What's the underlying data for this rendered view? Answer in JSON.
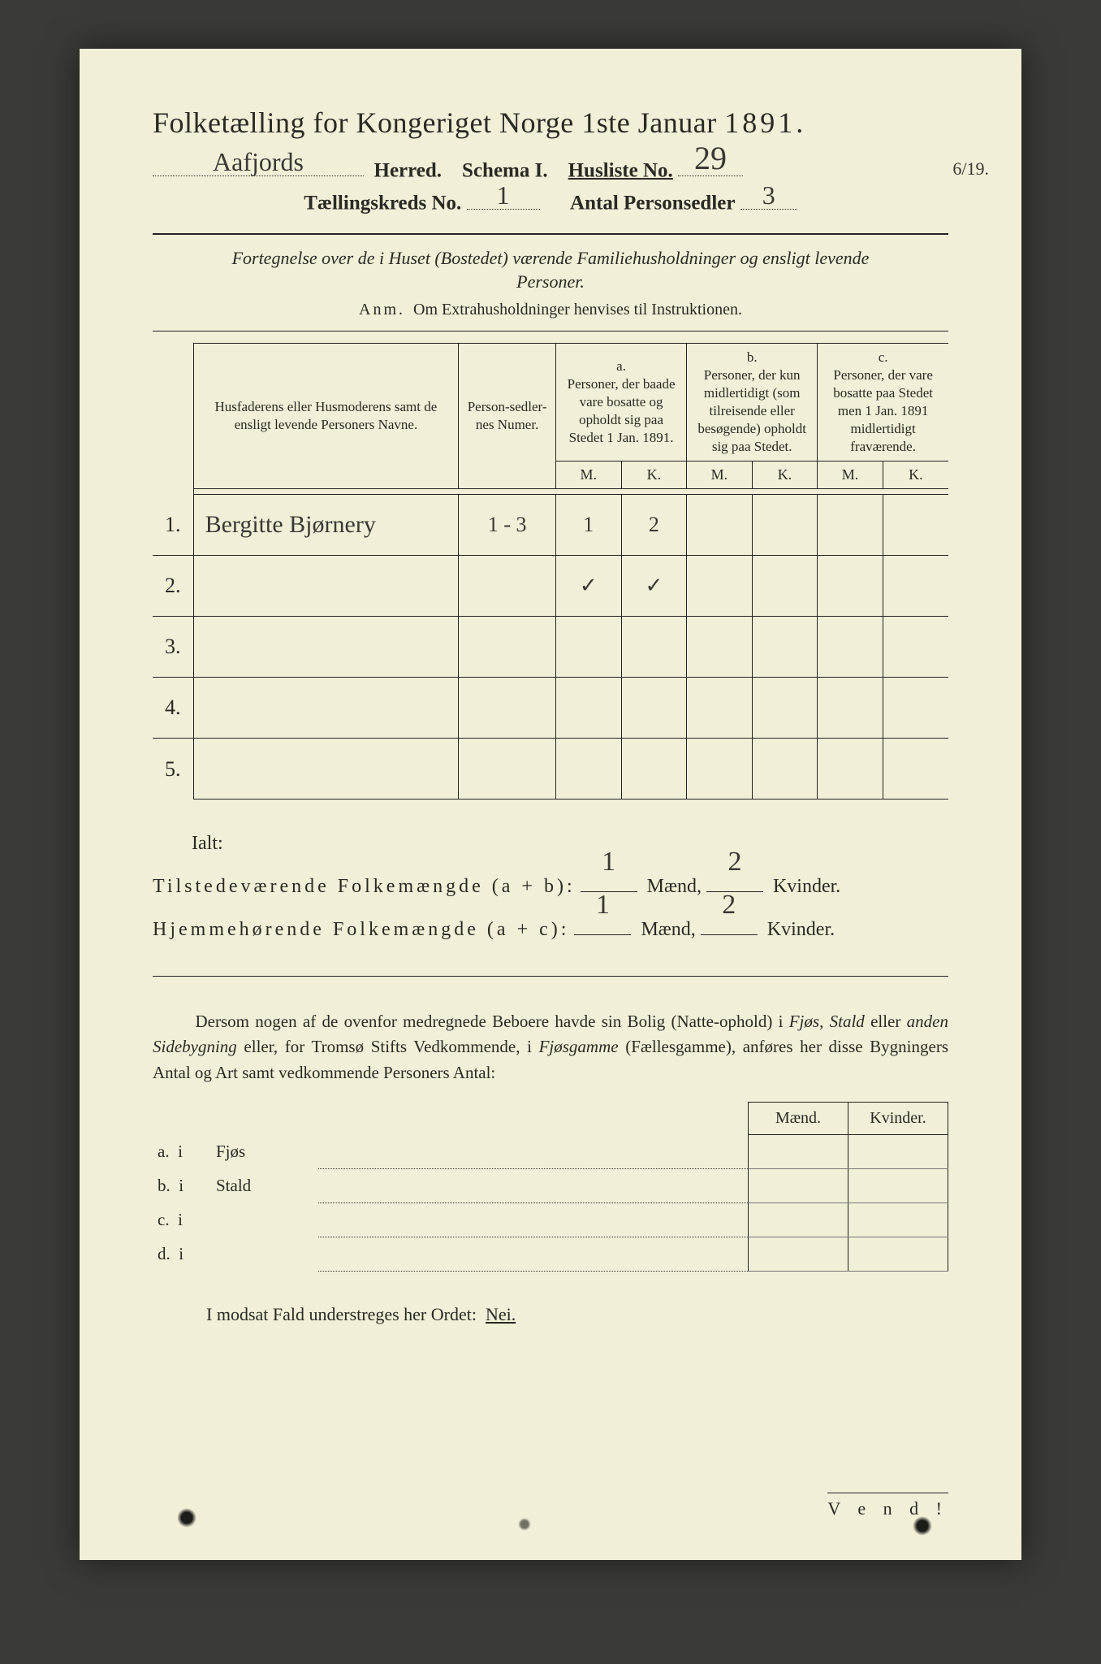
{
  "title": {
    "prefix": "Folketælling for Kongeriget Norge 1ste Januar",
    "year": "1891."
  },
  "header": {
    "herred_label": "Herred.",
    "herred_value": "Aafjords",
    "schema_label": "Schema I.",
    "husliste_label": "Husliste No.",
    "husliste_value": "29",
    "margin_note": "6/19.",
    "kreds_label": "Tællingskreds No.",
    "kreds_value": "1",
    "personsedler_label": "Antal Personsedler",
    "personsedler_value": "3"
  },
  "intro": {
    "line": "Fortegnelse over de i Huset (Bostedet) værende Familiehusholdninger og ensligt levende Personer.",
    "anm_label": "Anm.",
    "anm_text": "Om Extrahusholdninger henvises til Instruktionen."
  },
  "table": {
    "col_name": "Husfaderens eller Husmoderens samt de ensligt levende Personers Navne.",
    "col_sedler": "Person-sedler-nes Numer.",
    "col_a_label": "a.",
    "col_a": "Personer, der baade vare bosatte og opholdt sig paa Stedet 1 Jan. 1891.",
    "col_b_label": "b.",
    "col_b": "Personer, der kun midlertidigt (som tilreisende eller besøgende) opholdt sig paa Stedet.",
    "col_c_label": "c.",
    "col_c": "Personer, der vare bosatte paa Stedet men 1 Jan. 1891 midlertidigt fraværende.",
    "mk_m": "M.",
    "mk_k": "K.",
    "rows": [
      {
        "n": "1.",
        "name": "Bergitte Bjørnery",
        "sedler": "1 - 3",
        "a_m": "1",
        "a_k": "2",
        "b_m": "",
        "b_k": "",
        "c_m": "",
        "c_k": ""
      },
      {
        "n": "2.",
        "name": "",
        "sedler": "",
        "a_m": "✓",
        "a_k": "✓",
        "b_m": "",
        "b_k": "",
        "c_m": "",
        "c_k": ""
      },
      {
        "n": "3.",
        "name": "",
        "sedler": "",
        "a_m": "",
        "a_k": "",
        "b_m": "",
        "b_k": "",
        "c_m": "",
        "c_k": ""
      },
      {
        "n": "4.",
        "name": "",
        "sedler": "",
        "a_m": "",
        "a_k": "",
        "b_m": "",
        "b_k": "",
        "c_m": "",
        "c_k": ""
      },
      {
        "n": "5.",
        "name": "",
        "sedler": "",
        "a_m": "",
        "a_k": "",
        "b_m": "",
        "b_k": "",
        "c_m": "",
        "c_k": ""
      }
    ]
  },
  "summary": {
    "ialt": "Ialt:",
    "line1_label": "Tilstedeværende Folkemængde (a + b):",
    "line2_label": "Hjemmehørende Folkemængde (a + c):",
    "maend": "Mænd,",
    "kvinder": "Kvinder.",
    "v1_m": "1",
    "v1_k": "2",
    "v2_m": "1",
    "v2_k": "2"
  },
  "para": "Dersom nogen af de ovenfor medregnede Beboere havde sin Bolig (Natte-ophold) i Fjøs, Stald eller anden Sidebygning eller, for Tromsø Stifts Vedkommende, i Fjøsgamme (Fællesgamme), anføres her disse Bygningers Antal og Art samt vedkommende Personers Antal:",
  "para_italics": [
    "Fjøs, Stald",
    "anden Sidebygning",
    "Fjøsgamme"
  ],
  "sidebuild": {
    "head_m": "Mænd.",
    "head_k": "Kvinder.",
    "rows": [
      {
        "k": "a.",
        "i": "i",
        "label": "Fjøs"
      },
      {
        "k": "b.",
        "i": "i",
        "label": "Stald"
      },
      {
        "k": "c.",
        "i": "i",
        "label": ""
      },
      {
        "k": "d.",
        "i": "i",
        "label": ""
      }
    ]
  },
  "footer": {
    "line": "I modsat Fald understreges her Ordet:",
    "nei": "Nei.",
    "vend": "V e n d !"
  },
  "colors": {
    "paper": "#f2efd8",
    "ink": "#2a2a24",
    "bg": "#3a3a36"
  }
}
